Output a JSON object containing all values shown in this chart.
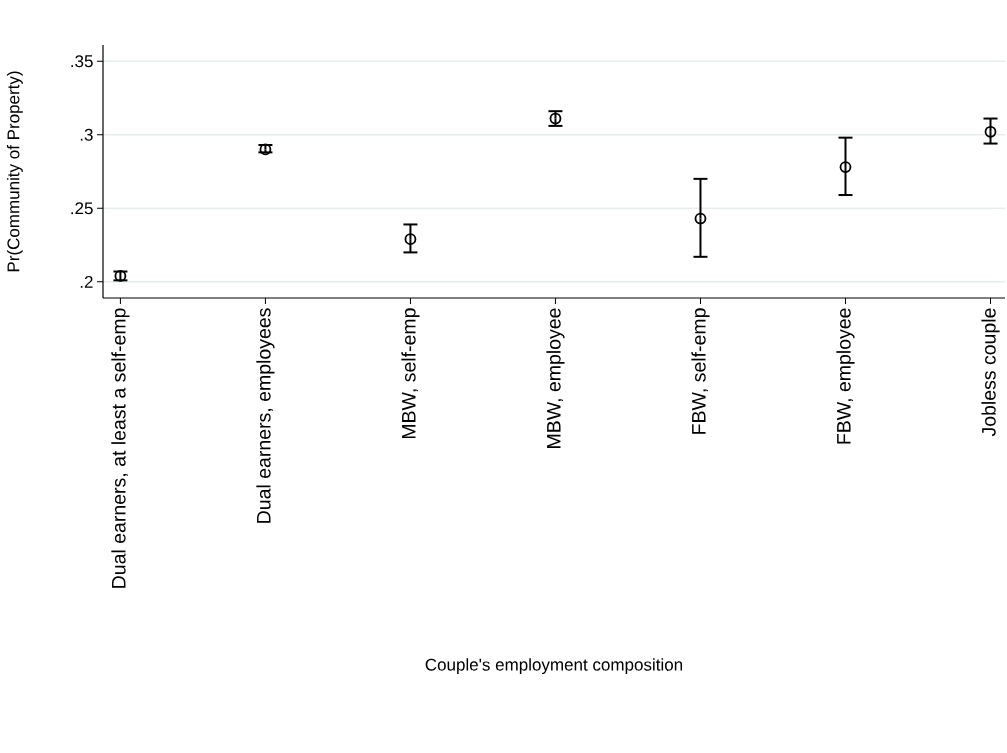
{
  "chart_data": {
    "type": "scatter",
    "xlabel": "Couple's employment composition",
    "ylabel": "Pr(Community of Property)",
    "categories": [
      "Dual earners, at least a self-emp",
      "Dual earners, employees",
      "MBW, self-emp",
      "MBW, employee",
      "FBW, self-emp",
      "FBW, employee",
      "Jobless couple"
    ],
    "values": [
      0.204,
      0.29,
      0.229,
      0.311,
      0.243,
      0.278,
      0.302
    ],
    "errors": [
      [
        0.201,
        0.207
      ],
      [
        0.288,
        0.293
      ],
      [
        0.22,
        0.239
      ],
      [
        0.306,
        0.316
      ],
      [
        0.217,
        0.27
      ],
      [
        0.259,
        0.298
      ],
      [
        0.294,
        0.311
      ]
    ],
    "color": "#000000",
    "marker": "circle",
    "ylim": [
      0.189,
      0.361
    ],
    "yticks": [
      {
        "value": 0.2,
        "label": ".2"
      },
      {
        "value": 0.25,
        "label": ".25"
      },
      {
        "value": 0.3,
        "label": ".3"
      },
      {
        "value": 0.35,
        "label": ".35"
      }
    ],
    "grid": "y"
  }
}
